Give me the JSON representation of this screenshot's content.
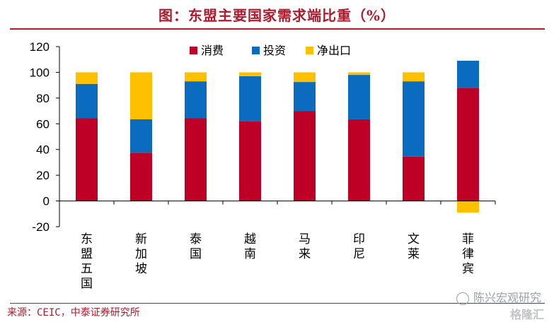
{
  "title": "图：东盟主要国家需求端比重（%）",
  "source": "来源：CEIC，中泰证券研究所",
  "watermark": "陈兴宏观研究",
  "logo": "格隆汇",
  "colors": {
    "consumption": "#be0027",
    "investment": "#0a6bbf",
    "net_export": "#ffc000",
    "title": "#b01a2d"
  },
  "chart_data": {
    "type": "bar",
    "stacked": true,
    "categories": [
      "东盟五国",
      "新加坡",
      "泰国",
      "越南",
      "马来",
      "印尼",
      "文莱",
      "菲律宾"
    ],
    "series": [
      {
        "name": "消费",
        "values": [
          64.5,
          37.5,
          64.5,
          62,
          70,
          63.5,
          34.5,
          88
        ]
      },
      {
        "name": "投资",
        "values": [
          26.5,
          26,
          28.5,
          35,
          22.5,
          34.5,
          58.5,
          21
        ]
      },
      {
        "name": "净出口",
        "values": [
          9,
          36.5,
          7,
          3,
          7.5,
          2,
          7,
          -9
        ]
      }
    ],
    "ylim": [
      -20,
      120
    ],
    "yticks": [
      -20,
      0,
      20,
      40,
      60,
      80,
      100,
      120
    ],
    "legend_position": "top",
    "grid": false
  }
}
